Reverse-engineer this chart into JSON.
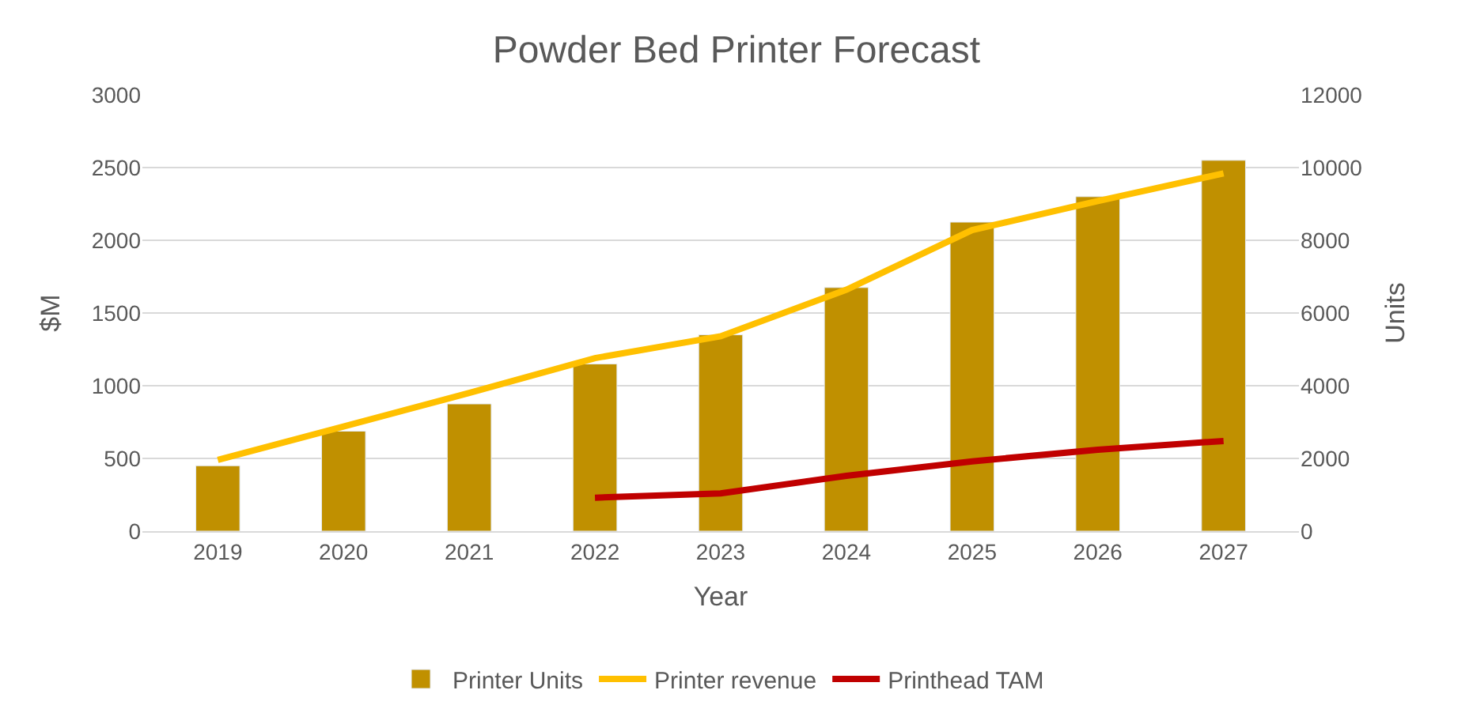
{
  "chart_data": {
    "type": "bar",
    "title": "Powder Bed Printer Forecast",
    "xlabel": "Year",
    "ylabel": "$M",
    "y2label": "Units",
    "categories": [
      "2019",
      "2020",
      "2021",
      "2022",
      "2023",
      "2024",
      "2025",
      "2026",
      "2027"
    ],
    "series": [
      {
        "name": "Printer Units",
        "axis": "y2",
        "color": "#c09000",
        "values": [
          1800,
          2750,
          3500,
          4600,
          5400,
          6700,
          8500,
          9200,
          10200
        ]
      },
      {
        "name": "Printer revenue",
        "type": "line",
        "color": "#ffc000",
        "values": [
          490,
          720,
          950,
          1190,
          1340,
          1660,
          2070,
          2270,
          2460
        ]
      },
      {
        "name": "Printhead TAM",
        "type": "line",
        "color": "#c00000",
        "values": [
          null,
          null,
          null,
          230,
          260,
          380,
          480,
          560,
          620
        ]
      }
    ],
    "ylim": [
      0,
      3000
    ],
    "yticks": [
      0,
      500,
      1000,
      1500,
      2000,
      2500,
      3000
    ],
    "y2lim": [
      0,
      12000
    ],
    "y2ticks": [
      0,
      2000,
      4000,
      6000,
      8000,
      10000,
      12000
    ],
    "grid": "y",
    "legend": "bottom",
    "marker": "none",
    "line_style": "solid"
  }
}
